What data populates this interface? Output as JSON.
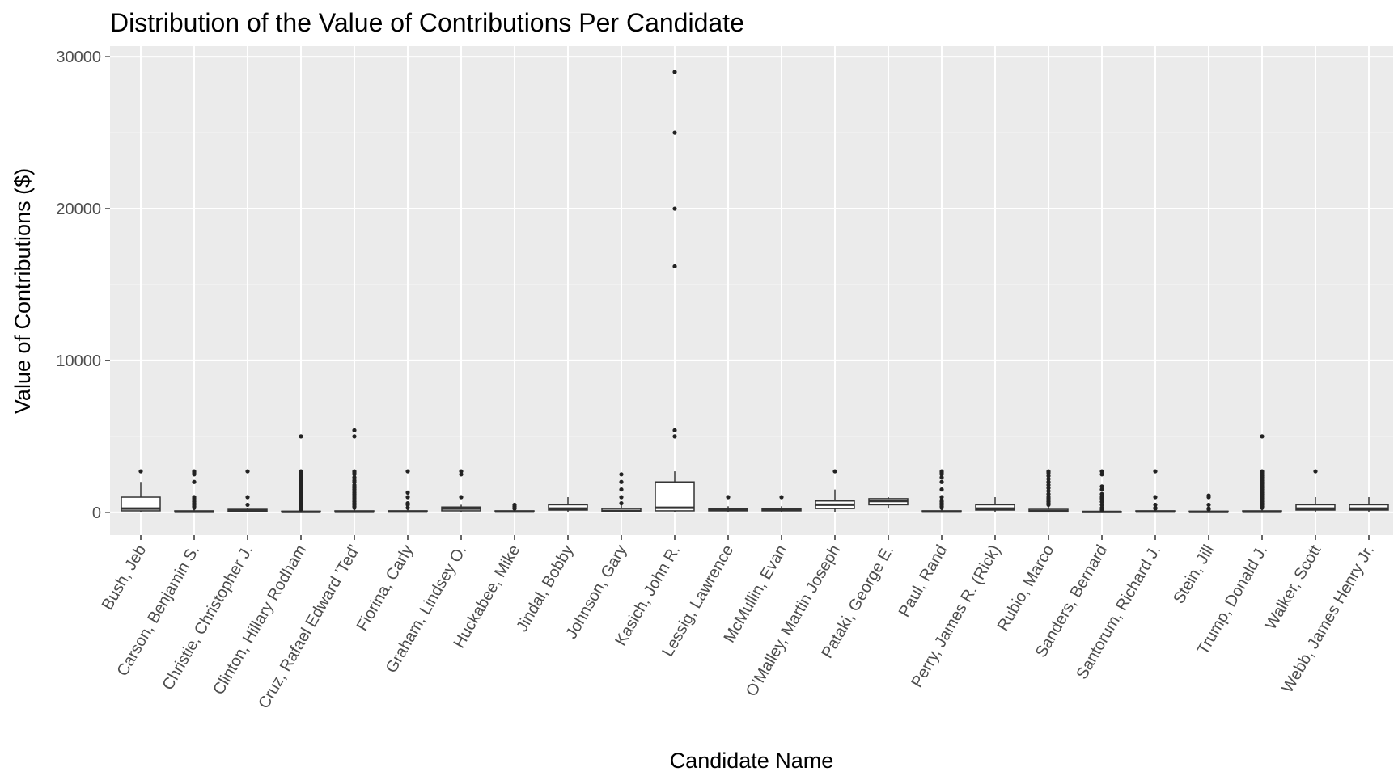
{
  "chart_data": {
    "type": "boxplot",
    "title": "Distribution of the Value of Contributions Per Candidate",
    "xlabel": "Candidate Name",
    "ylabel": "Value of Contributions ($)",
    "ylim": [
      -1500,
      30700
    ],
    "yticks": [
      0,
      10000,
      20000,
      30000
    ],
    "grid": true,
    "categories": [
      "Bush, Jeb",
      "Carson, Benjamin S.",
      "Christie, Christopher J.",
      "Clinton, Hillary Rodham",
      "Cruz, Rafael Edward 'Ted'",
      "Fiorina, Carly",
      "Graham, Lindsey O.",
      "Huckabee, Mike",
      "Jindal, Bobby",
      "Johnson, Gary",
      "Kasich, John R.",
      "Lessig, Lawrence",
      "McMullin, Evan",
      "O'Malley, Martin Joseph",
      "Pataki, George E.",
      "Paul, Rand",
      "Perry, James R. (Rick)",
      "Rubio, Marco",
      "Sanders, Bernard",
      "Santorum, Richard J.",
      "Stein, Jill",
      "Trump, Donald J.",
      "Walker, Scott",
      "Webb, James Henry Jr."
    ],
    "boxes": [
      {
        "q1": 100,
        "median": 250,
        "q3": 1000,
        "lower": 0,
        "upper": 2000,
        "outliers": [
          2700
        ]
      },
      {
        "q1": 15,
        "median": 35,
        "q3": 100,
        "lower": 0,
        "upper": 200,
        "outliers": [
          300,
          400,
          500,
          600,
          700,
          800,
          900,
          1000,
          2000,
          2500,
          2600,
          2700
        ]
      },
      {
        "q1": 50,
        "median": 100,
        "q3": 200,
        "lower": 0,
        "upper": 300,
        "outliers": [
          500,
          1000,
          2700
        ]
      },
      {
        "q1": 15,
        "median": 27,
        "q3": 75,
        "lower": 0,
        "upper": 160,
        "outliers": [
          200,
          300,
          400,
          500,
          600,
          700,
          800,
          900,
          1000,
          1100,
          1200,
          1300,
          1400,
          1500,
          1600,
          1700,
          1800,
          1900,
          2000,
          2100,
          2200,
          2300,
          2400,
          2500,
          2600,
          2700,
          5000
        ]
      },
      {
        "q1": 15,
        "median": 35,
        "q3": 100,
        "lower": 0,
        "upper": 200,
        "outliers": [
          300,
          400,
          500,
          600,
          700,
          800,
          900,
          1000,
          1100,
          1200,
          1300,
          1400,
          1500,
          1600,
          1700,
          1800,
          2000,
          2100,
          2300,
          2500,
          2600,
          2700,
          5000,
          5400
        ]
      },
      {
        "q1": 25,
        "median": 50,
        "q3": 100,
        "lower": 0,
        "upper": 200,
        "outliers": [
          300,
          500,
          600,
          1000,
          1300,
          2700
        ]
      },
      {
        "q1": 100,
        "median": 250,
        "q3": 350,
        "lower": 0,
        "upper": 500,
        "outliers": [
          1000,
          2500,
          2700
        ]
      },
      {
        "q1": 25,
        "median": 50,
        "q3": 100,
        "lower": 0,
        "upper": 200,
        "outliers": [
          250,
          300,
          400,
          500
        ]
      },
      {
        "q1": 150,
        "median": 250,
        "q3": 500,
        "lower": 0,
        "upper": 1000,
        "outliers": []
      },
      {
        "q1": 50,
        "median": 100,
        "q3": 250,
        "lower": 0,
        "upper": 500,
        "outliers": [
          600,
          1000,
          1500,
          2000,
          2500
        ]
      },
      {
        "q1": 100,
        "median": 300,
        "q3": 2000,
        "lower": 0,
        "upper": 2700,
        "outliers": [
          5000,
          5400,
          16200,
          20000,
          25000,
          29000
        ]
      },
      {
        "q1": 100,
        "median": 200,
        "q3": 250,
        "lower": 0,
        "upper": 400,
        "outliers": [
          1000
        ]
      },
      {
        "q1": 100,
        "median": 200,
        "q3": 250,
        "lower": 0,
        "upper": 400,
        "outliers": [
          1000
        ]
      },
      {
        "q1": 250,
        "median": 500,
        "q3": 750,
        "lower": 0,
        "upper": 1500,
        "outliers": [
          2700
        ]
      },
      {
        "q1": 500,
        "median": 750,
        "q3": 900,
        "lower": 250,
        "upper": 1000,
        "outliers": []
      },
      {
        "q1": 15,
        "median": 50,
        "q3": 100,
        "lower": 0,
        "upper": 200,
        "outliers": [
          300,
          400,
          500,
          600,
          700,
          800,
          1000,
          1500,
          2000,
          2300,
          2500,
          2600,
          2700
        ]
      },
      {
        "q1": 150,
        "median": 250,
        "q3": 500,
        "lower": 0,
        "upper": 1000,
        "outliers": []
      },
      {
        "q1": 25,
        "median": 75,
        "q3": 200,
        "lower": 0,
        "upper": 400,
        "outliers": [
          500,
          600,
          700,
          800,
          900,
          1000,
          1200,
          1400,
          1600,
          1800,
          2000,
          2200,
          2400,
          2600,
          2700
        ]
      },
      {
        "q1": 15,
        "median": 27,
        "q3": 50,
        "lower": 0,
        "upper": 100,
        "outliers": [
          150,
          200,
          300,
          500,
          700,
          900,
          1000,
          1200,
          1500,
          1700,
          2500,
          2700
        ]
      },
      {
        "q1": 25,
        "median": 50,
        "q3": 100,
        "lower": 0,
        "upper": 200,
        "outliers": [
          250,
          300,
          500,
          1000,
          2700
        ]
      },
      {
        "q1": 15,
        "median": 30,
        "q3": 75,
        "lower": 0,
        "upper": 150,
        "outliers": [
          200,
          250,
          500,
          1000,
          1100
        ]
      },
      {
        "q1": 15,
        "median": 40,
        "q3": 100,
        "lower": 0,
        "upper": 200,
        "outliers": [
          300,
          400,
          500,
          600,
          700,
          800,
          900,
          1000,
          1100,
          1200,
          1300,
          1400,
          1500,
          1600,
          1700,
          1800,
          1900,
          2000,
          2100,
          2200,
          2300,
          2400,
          2500,
          2600,
          2700,
          5000
        ]
      },
      {
        "q1": 150,
        "median": 250,
        "q3": 500,
        "lower": 0,
        "upper": 1000,
        "outliers": [
          2700
        ]
      },
      {
        "q1": 150,
        "median": 250,
        "q3": 500,
        "lower": 0,
        "upper": 1000,
        "outliers": []
      }
    ]
  }
}
